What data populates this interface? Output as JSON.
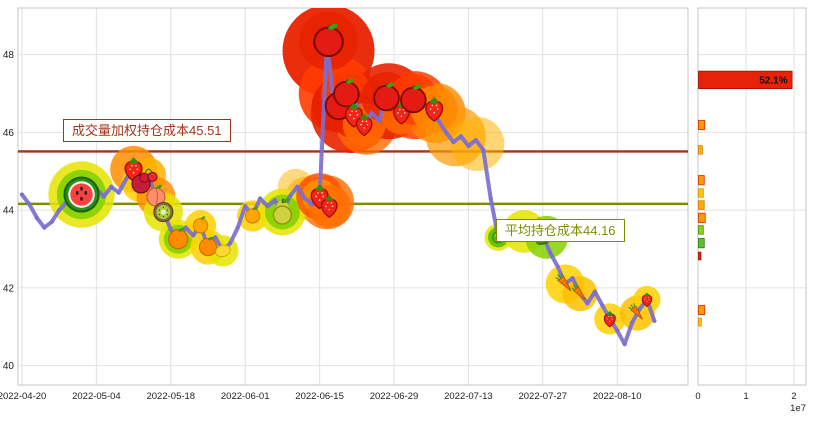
{
  "annotations": {
    "vwap_label": "成交量加权持仓成本45.51",
    "avg_label": "平均持仓成本44.16"
  },
  "chart_data": {
    "type": "line",
    "line_color": "#7b6fd0",
    "grid_color": "#e2e2e2",
    "border_color": "#c6c6c6",
    "ylim": [
      39.5,
      49.2
    ],
    "y_ticks": [
      40,
      42,
      44,
      46,
      48
    ],
    "x_tick_days": [
      0,
      10,
      20,
      30,
      40,
      50,
      60,
      70,
      80
    ],
    "x_ticks": [
      "2022-04-20",
      "2022-05-04",
      "2022-05-18",
      "2022-06-01",
      "2022-06-15",
      "2022-06-29",
      "2022-07-13",
      "2022-07-27",
      "2022-08-10"
    ],
    "prices_by_day": [
      44.4,
      44.15,
      43.8,
      43.55,
      43.7,
      44.0,
      44.2,
      44.35,
      44.4,
      44.2,
      44.55,
      44.35,
      44.6,
      44.45,
      44.8,
      45.05,
      44.7,
      44.9,
      44.35,
      43.95,
      43.5,
      43.25,
      43.55,
      43.35,
      43.6,
      43.05,
      43.3,
      42.95,
      43.15,
      43.55,
      44.1,
      43.85,
      44.3,
      44.1,
      44.25,
      43.95,
      44.35,
      44.6,
      44.3,
      44.15,
      44.35,
      48.3,
      46.6,
      47.0,
      46.45,
      46.7,
      46.2,
      46.5,
      46.3,
      46.9,
      46.75,
      46.5,
      46.85,
      46.6,
      46.7,
      46.55,
      46.3,
      46.0,
      45.75,
      45.9,
      45.65,
      45.8,
      45.55,
      44.3,
      43.3,
      43.35,
      43.6,
      43.35,
      43.55,
      43.25,
      43.35,
      42.9,
      42.55,
      42.1,
      42.25,
      41.85,
      41.6,
      41.9,
      41.55,
      41.2,
      40.9,
      40.55,
      41.1,
      41.45,
      41.7,
      41.15
    ],
    "hlines": [
      {
        "value": 45.51,
        "color": "#a3341d",
        "label": "成交量加权持仓成本45.51"
      },
      {
        "value": 44.16,
        "color": "#7f8c00",
        "label": "平均持仓成本44.16"
      }
    ],
    "blobs": [
      [
        41.2,
        48.1,
        46,
        "#e82200",
        0.95
      ],
      [
        42.3,
        47.0,
        38,
        "#ff3c00",
        0.9
      ],
      [
        44.2,
        46.5,
        40,
        "#e82200",
        0.9
      ],
      [
        46.3,
        46.2,
        30,
        "#ff6a00",
        0.8
      ],
      [
        49.3,
        46.8,
        38,
        "#e82200",
        0.9
      ],
      [
        52.8,
        46.7,
        34,
        "#ff3c00",
        0.85
      ],
      [
        55.6,
        46.5,
        30,
        "#ff8800",
        0.8
      ],
      [
        58.3,
        45.9,
        30,
        "#ff9800",
        0.7
      ],
      [
        61.2,
        45.7,
        27,
        "#ffb400",
        0.55
      ],
      [
        41.0,
        44.2,
        27,
        "#ff6a00",
        0.8
      ],
      [
        38.3,
        44.3,
        22,
        "#ffa800",
        0.6
      ],
      [
        36.8,
        44.6,
        18,
        "#ffb400",
        0.5
      ]
    ],
    "fruits": [
      {
        "d": 8,
        "p": 44.4,
        "type": "watermelon",
        "r": 17,
        "halo": [
          "#e6e400",
          "#86d000"
        ]
      },
      {
        "d": 15,
        "p": 45.05,
        "type": "strawberry",
        "r": 12,
        "halo": [
          "#ff8c00"
        ]
      },
      {
        "d": 16,
        "p": 44.7,
        "type": "pomegranate",
        "r": 10,
        "halo": [
          "#ffd000"
        ]
      },
      {
        "d": 17,
        "p": 44.9,
        "type": "cherry",
        "r": 9,
        "halo": [
          "#ffb000"
        ]
      },
      {
        "d": 18,
        "p": 44.35,
        "type": "peach",
        "r": 10,
        "halo": [
          "#ff9000"
        ]
      },
      {
        "d": 19,
        "p": 43.95,
        "type": "kiwi",
        "r": 10,
        "halo": [
          "#e6e400"
        ]
      },
      {
        "d": 21,
        "p": 43.25,
        "type": "orange",
        "r": 10,
        "halo": [
          "#e6e400",
          "#86d000"
        ]
      },
      {
        "d": 24,
        "p": 43.6,
        "type": "tangerine",
        "r": 8,
        "halo": [
          "#ffd000"
        ]
      },
      {
        "d": 25,
        "p": 43.05,
        "type": "orange",
        "r": 9,
        "halo": [
          "#ffd000"
        ]
      },
      {
        "d": 27,
        "p": 42.95,
        "type": "lemon",
        "r": 8,
        "halo": [
          "#e6e400"
        ]
      },
      {
        "d": 31,
        "p": 43.85,
        "type": "tangerine",
        "r": 8,
        "halo": [
          "#ffd000"
        ]
      },
      {
        "d": 35,
        "p": 43.95,
        "type": "pear",
        "r": 12,
        "halo": [
          "#e6e400",
          "#86d000"
        ]
      },
      {
        "d": 40,
        "p": 44.35,
        "type": "strawberry",
        "r": 12,
        "halo": [
          "#ff5000",
          "#ff9000"
        ]
      },
      {
        "d": 41.3,
        "p": 44.1,
        "type": "strawberry",
        "r": 11,
        "halo": [
          "#ff7000"
        ]
      },
      {
        "d": 41.2,
        "p": 48.35,
        "type": "apple",
        "r": 15,
        "halo": [
          "#e82200"
        ]
      },
      {
        "d": 42.6,
        "p": 46.7,
        "type": "apple",
        "r": 14,
        "halo": [
          "#e82200"
        ]
      },
      {
        "d": 43.6,
        "p": 47.0,
        "type": "apple",
        "r": 13,
        "halo": [
          "#ff3c00"
        ]
      },
      {
        "d": 44.6,
        "p": 46.45,
        "type": "strawberry",
        "r": 12,
        "halo": [
          "#e82200"
        ]
      },
      {
        "d": 46,
        "p": 46.2,
        "type": "strawberry",
        "r": 11,
        "halo": [
          "#ff6a00"
        ]
      },
      {
        "d": 49,
        "p": 46.9,
        "type": "apple",
        "r": 13,
        "halo": [
          "#e82200"
        ]
      },
      {
        "d": 51,
        "p": 46.5,
        "type": "strawberry",
        "r": 11,
        "halo": [
          "#ff6a00"
        ]
      },
      {
        "d": 52.6,
        "p": 46.85,
        "type": "apple",
        "r": 13,
        "halo": [
          "#ff3c00"
        ]
      },
      {
        "d": 55.4,
        "p": 46.6,
        "type": "strawberry",
        "r": 12,
        "halo": [
          "#ff8800"
        ]
      },
      {
        "d": 64,
        "p": 43.3,
        "type": "pea",
        "r": 7,
        "halo": [
          "#e6e400",
          "#5abf00"
        ]
      },
      {
        "d": 65.5,
        "p": 43.45,
        "type": "pea",
        "r": 6,
        "halo": [
          "#9add00"
        ]
      },
      {
        "d": 67.5,
        "p": 43.45,
        "type": "peapod",
        "r": 11,
        "halo": [
          "#e6e400"
        ]
      },
      {
        "d": 70.5,
        "p": 43.3,
        "type": "peapod",
        "r": 11,
        "halo": [
          "#86d000"
        ]
      },
      {
        "d": 73,
        "p": 42.1,
        "type": "carrot",
        "r": 10,
        "halo": [
          "#ffd000"
        ]
      },
      {
        "d": 75,
        "p": 41.85,
        "type": "carrot",
        "r": 9,
        "halo": [
          "#ffc000"
        ]
      },
      {
        "d": 79,
        "p": 41.2,
        "type": "strawberry",
        "r": 8,
        "halo": [
          "#ffd000"
        ]
      },
      {
        "d": 82.7,
        "p": 41.35,
        "type": "carrot",
        "r": 9,
        "halo": [
          "#ffc000"
        ]
      },
      {
        "d": 84,
        "p": 41.7,
        "type": "strawberry",
        "r": 7,
        "halo": [
          "#ffd000"
        ]
      }
    ],
    "right_panel": {
      "type": "bar-horizontal",
      "x_ticks": [
        0,
        1,
        2
      ],
      "x_scale_label": "1e7",
      "xlim": [
        0,
        2.27
      ],
      "bars": [
        {
          "price": 47.35,
          "h": 0.45,
          "value": 1.95,
          "color": "#e8220a",
          "stroke": "#9c1000",
          "label": "52.1%"
        },
        {
          "price": 46.19,
          "h": 0.24,
          "value": 0.13,
          "color": "#ff9a00",
          "stroke": "#d43000"
        },
        {
          "price": 45.55,
          "h": 0.22,
          "value": 0.08,
          "color": "#ffb400",
          "stroke": "#d47800"
        },
        {
          "price": 44.77,
          "h": 0.24,
          "value": 0.12,
          "color": "#ff9a00",
          "stroke": "#d43000"
        },
        {
          "price": 44.44,
          "h": 0.22,
          "value": 0.1,
          "color": "#ffc400",
          "stroke": "#d49400"
        },
        {
          "price": 44.13,
          "h": 0.22,
          "value": 0.12,
          "color": "#ffaa00",
          "stroke": "#d47800"
        },
        {
          "price": 43.8,
          "h": 0.24,
          "value": 0.14,
          "color": "#ff9a00",
          "stroke": "#d43000"
        },
        {
          "price": 43.49,
          "h": 0.22,
          "value": 0.1,
          "color": "#8ccf1e",
          "stroke": "#4e8c00"
        },
        {
          "price": 43.15,
          "h": 0.24,
          "value": 0.12,
          "color": "#5abf2a",
          "stroke": "#2f7a00"
        },
        {
          "price": 42.82,
          "h": 0.2,
          "value": 0.05,
          "color": "#e8220a",
          "stroke": "#9c1000"
        },
        {
          "price": 41.43,
          "h": 0.24,
          "value": 0.13,
          "color": "#ff9a00",
          "stroke": "#d43000"
        },
        {
          "price": 41.12,
          "h": 0.2,
          "value": 0.06,
          "color": "#ffc400",
          "stroke": "#d49400"
        }
      ]
    }
  }
}
